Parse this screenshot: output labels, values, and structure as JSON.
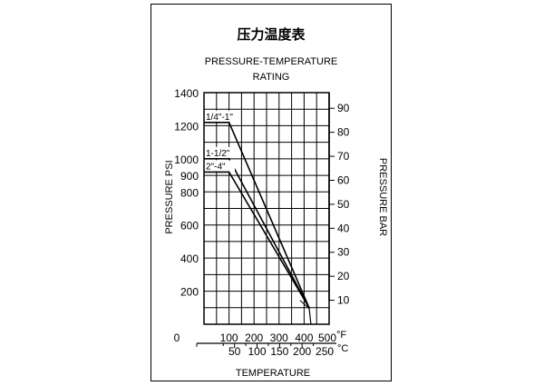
{
  "chart_data": {
    "type": "line",
    "title": "压力温度表",
    "subtitle_lines": [
      "PRESSURE-TEMPERATURE",
      "RATING"
    ],
    "ylabel": "PRESSURE PSI",
    "ylabel_right": "PRESSURE BAR",
    "xlabel": "TEMPERATURE",
    "ylim": [
      0,
      1400
    ],
    "xlim": [
      0,
      500
    ],
    "grid": true,
    "y_ticks": [
      "200",
      "400",
      "600",
      "800",
      "900",
      "1000",
      "1200",
      "1400"
    ],
    "y_right_ticks": [
      "10",
      "20",
      "30",
      "40",
      "50",
      "60",
      "70",
      "80",
      "90"
    ],
    "x_ticks_f": [
      "0",
      "100",
      "200",
      "300",
      "400",
      "500"
    ],
    "x_unit_f": "°F",
    "x_ticks_c": [
      "50",
      "100",
      "150",
      "200",
      "250"
    ],
    "x_unit_c": "°C",
    "series": [
      {
        "name": "1/4\"-1\"",
        "x": [
          0,
          100,
          420
        ],
        "y": [
          1220,
          1220,
          100
        ]
      },
      {
        "name": "1-1/2\"",
        "x": [
          0,
          100,
          420
        ],
        "y": [
          1000,
          1000,
          100
        ]
      },
      {
        "name": "2\"-4\"",
        "x": [
          0,
          100,
          420
        ],
        "y": [
          920,
          920,
          100
        ]
      }
    ]
  }
}
